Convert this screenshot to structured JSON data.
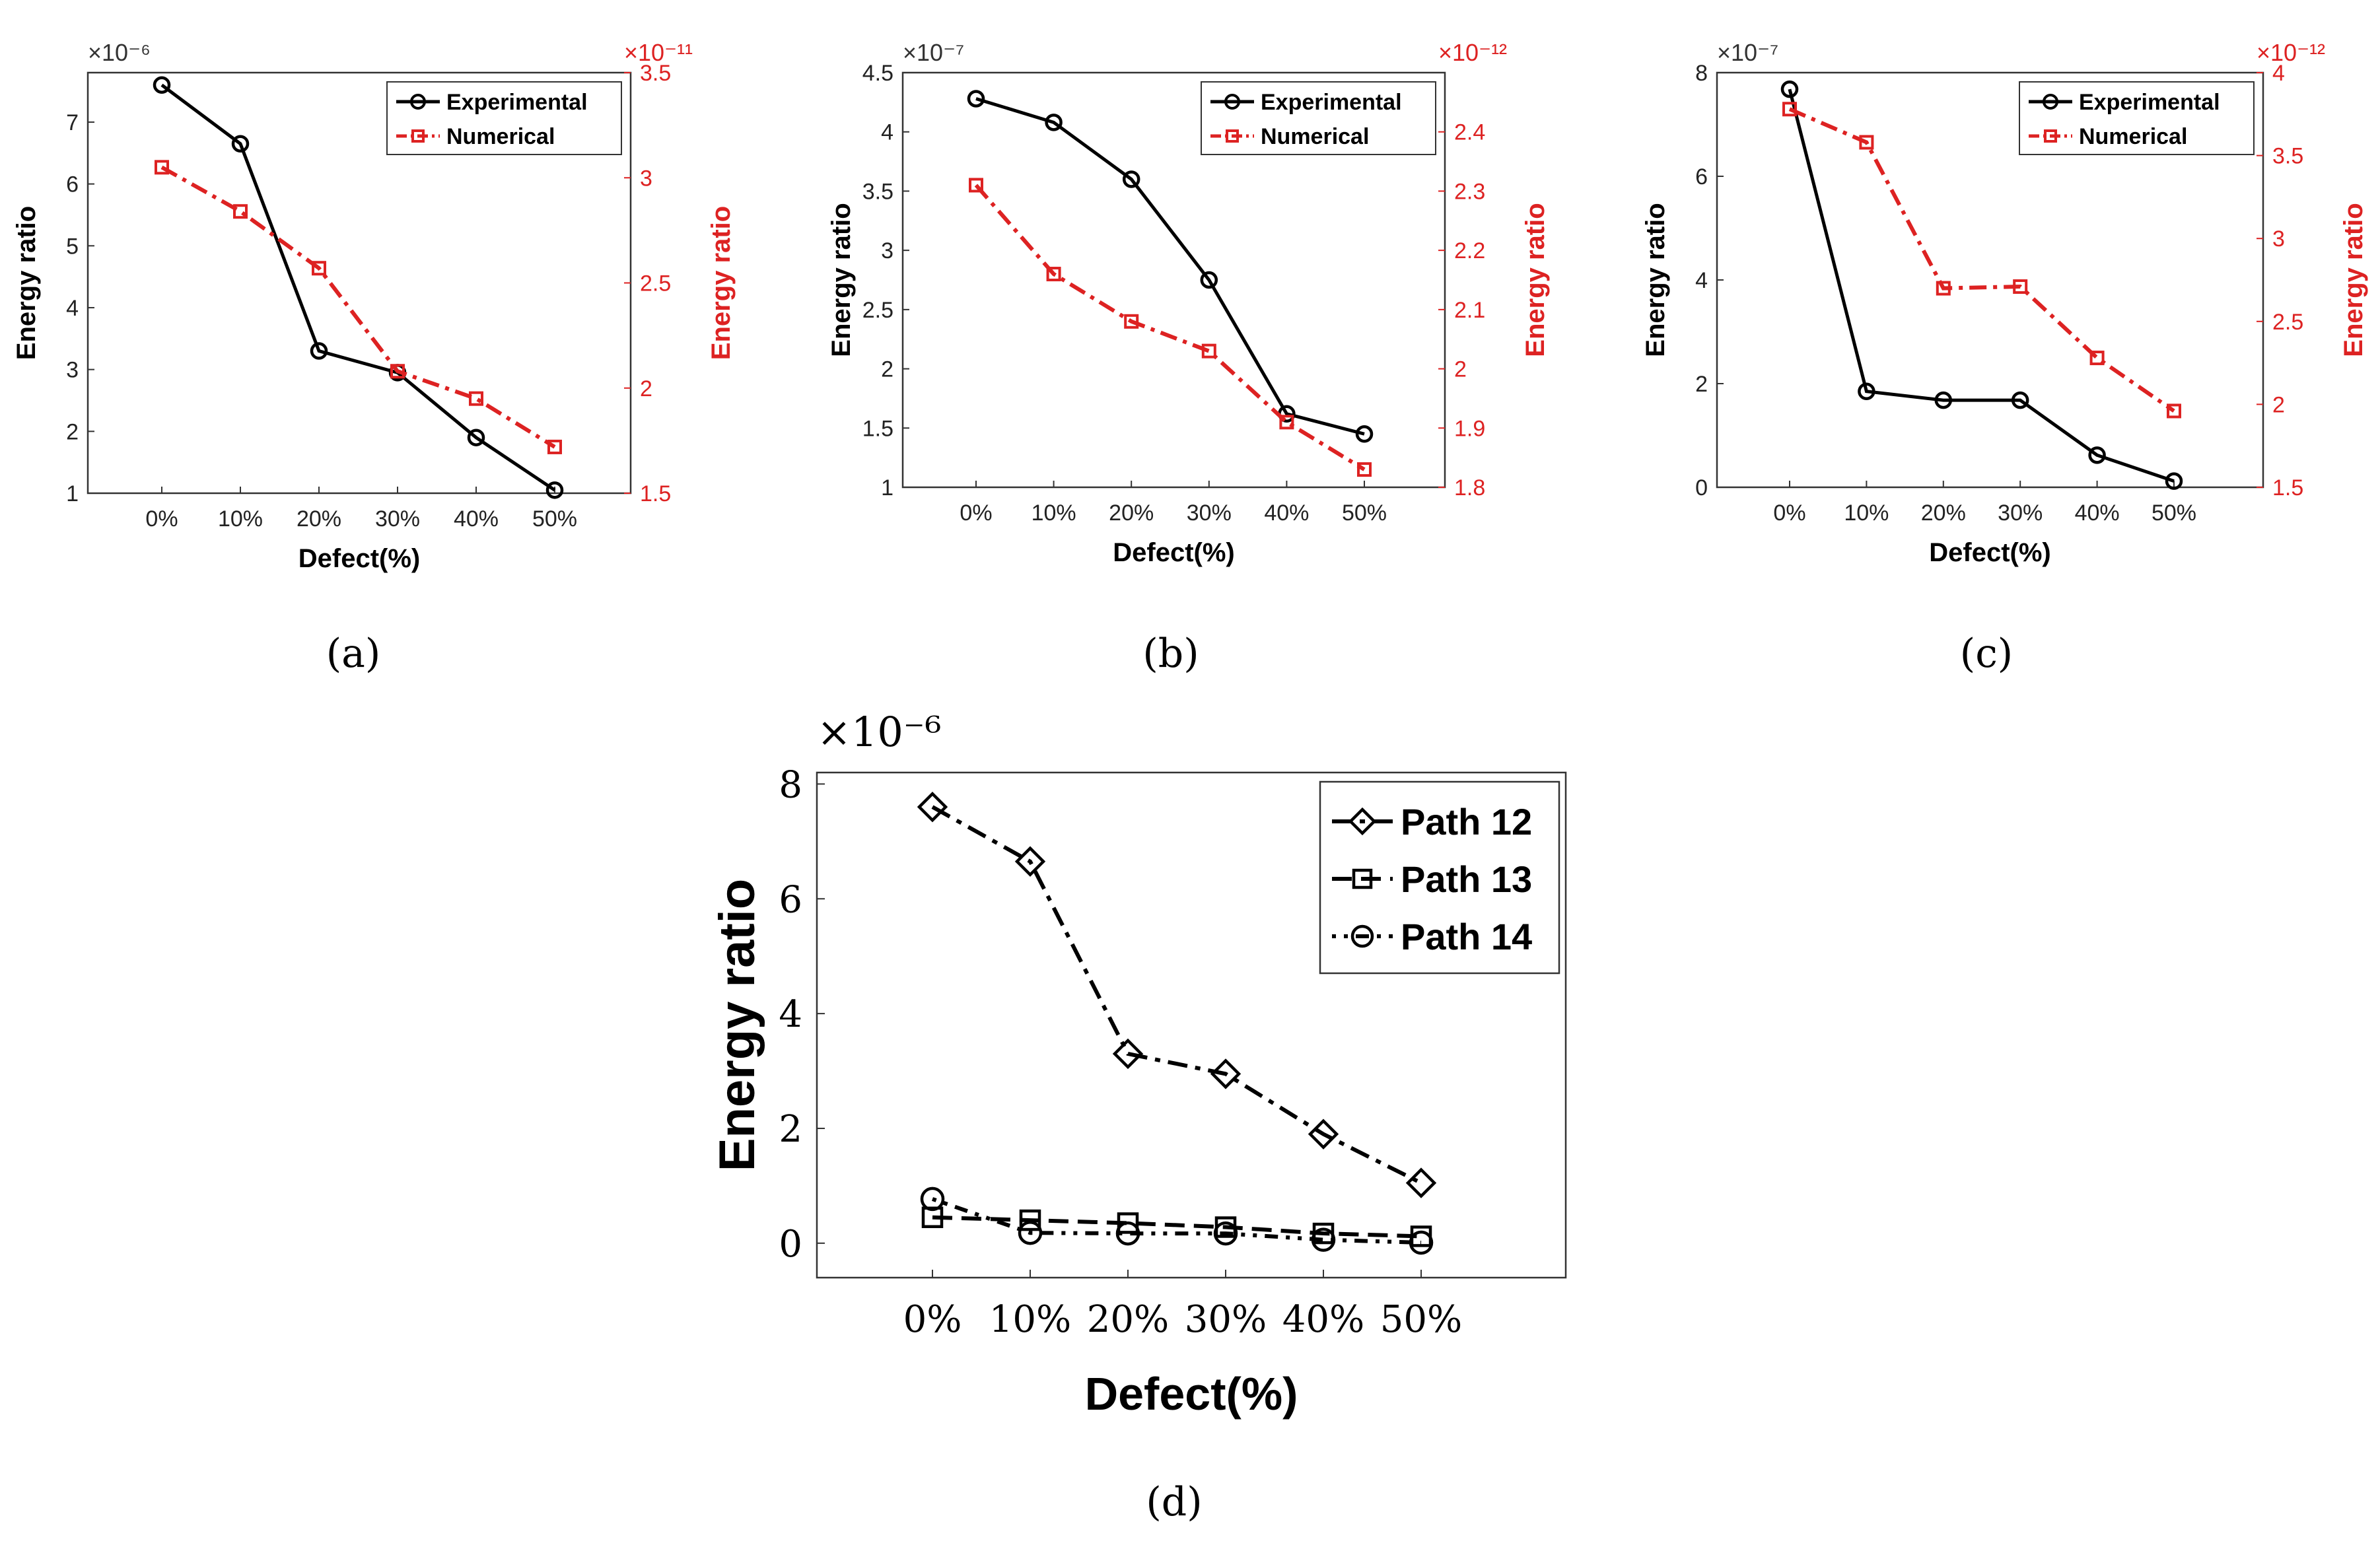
{
  "figure": {
    "panel_labels": [
      "(a)",
      "(b)",
      "(c)",
      "(d)"
    ]
  },
  "colors": {
    "experimental": "#000000",
    "numerical": "#dd2222",
    "axis": "#333333"
  },
  "chart_data": [
    {
      "id": "a",
      "type": "line",
      "categories": [
        "0%",
        "10%",
        "20%",
        "30%",
        "40%",
        "50%"
      ],
      "xlabel": "Defect(%)",
      "ylabel_left": "Energy ratio",
      "ylabel_right": "Energy ratio",
      "left_exponent": "×10⁻⁶",
      "right_exponent": "×10⁻¹¹",
      "ylim_left": [
        1,
        7.8
      ],
      "yticks_left": [
        "1",
        "2",
        "3",
        "4",
        "5",
        "6",
        "7"
      ],
      "ylim_right": [
        1.5,
        3.5
      ],
      "yticks_right": [
        "1.5",
        "2",
        "2.5",
        "3",
        "3.5"
      ],
      "legend_position": "top-right",
      "series": [
        {
          "name": "Experimental",
          "axis": "left",
          "values": [
            7.6,
            6.65,
            3.3,
            2.95,
            1.9,
            1.05
          ]
        },
        {
          "name": "Numerical",
          "axis": "right",
          "values": [
            3.05,
            2.84,
            2.57,
            2.08,
            1.95,
            1.72
          ]
        }
      ]
    },
    {
      "id": "b",
      "type": "line",
      "categories": [
        "0%",
        "10%",
        "20%",
        "30%",
        "40%",
        "50%"
      ],
      "xlabel": "Defect(%)",
      "ylabel_left": "Energy ratio",
      "ylabel_right": "Energy ratio",
      "left_exponent": "×10⁻⁷",
      "right_exponent": "×10⁻¹²",
      "ylim_left": [
        1,
        4.5
      ],
      "yticks_left": [
        "1",
        "1.5",
        "2",
        "2.5",
        "3",
        "3.5",
        "4",
        "4.5"
      ],
      "ylim_right": [
        1.8,
        2.5
      ],
      "yticks_right": [
        "1.8",
        "1.9",
        "2",
        "2.1",
        "2.2",
        "2.3",
        "2.4"
      ],
      "legend_position": "top-right",
      "series": [
        {
          "name": "Experimental",
          "axis": "left",
          "values": [
            4.28,
            4.08,
            3.6,
            2.75,
            1.62,
            1.45
          ]
        },
        {
          "name": "Numerical",
          "axis": "right",
          "values": [
            2.31,
            2.16,
            2.08,
            2.03,
            1.91,
            1.83
          ]
        }
      ]
    },
    {
      "id": "c",
      "type": "line",
      "categories": [
        "0%",
        "10%",
        "20%",
        "30%",
        "40%",
        "50%"
      ],
      "xlabel": "Defect(%)",
      "ylabel_left": "Energy ratio",
      "ylabel_right": "Energy ratio",
      "left_exponent": "×10⁻⁷",
      "right_exponent": "×10⁻¹²",
      "ylim_left": [
        0,
        8
      ],
      "yticks_left": [
        "0",
        "2",
        "4",
        "6",
        "8"
      ],
      "ylim_right": [
        1.5,
        4
      ],
      "yticks_right": [
        "1.5",
        "2",
        "2.5",
        "3",
        "3.5",
        "4"
      ],
      "legend_position": "top-right",
      "series": [
        {
          "name": "Experimental",
          "axis": "left",
          "values": [
            7.68,
            1.85,
            1.68,
            1.68,
            0.62,
            0.12
          ]
        },
        {
          "name": "Numerical",
          "axis": "right",
          "values": [
            3.78,
            3.58,
            2.7,
            2.71,
            2.28,
            1.96
          ]
        }
      ]
    },
    {
      "id": "d",
      "type": "line",
      "categories": [
        "0%",
        "10%",
        "20%",
        "30%",
        "40%",
        "50%"
      ],
      "xlabel": "Defect(%)",
      "ylabel": "Energy ratio",
      "exponent": "×10⁻⁶",
      "ylim": [
        -0.6,
        8.2
      ],
      "yticks": [
        "0",
        "2",
        "4",
        "6",
        "8"
      ],
      "legend_position": "top-right",
      "series": [
        {
          "name": "Path 12",
          "marker": "diamond",
          "values": [
            7.6,
            6.65,
            3.3,
            2.95,
            1.9,
            1.05
          ]
        },
        {
          "name": "Path 13",
          "marker": "square",
          "values": [
            0.45,
            0.4,
            0.35,
            0.28,
            0.17,
            0.12
          ]
        },
        {
          "name": "Path 14",
          "marker": "circle",
          "values": [
            0.77,
            0.18,
            0.17,
            0.17,
            0.06,
            0.01
          ]
        }
      ]
    }
  ]
}
